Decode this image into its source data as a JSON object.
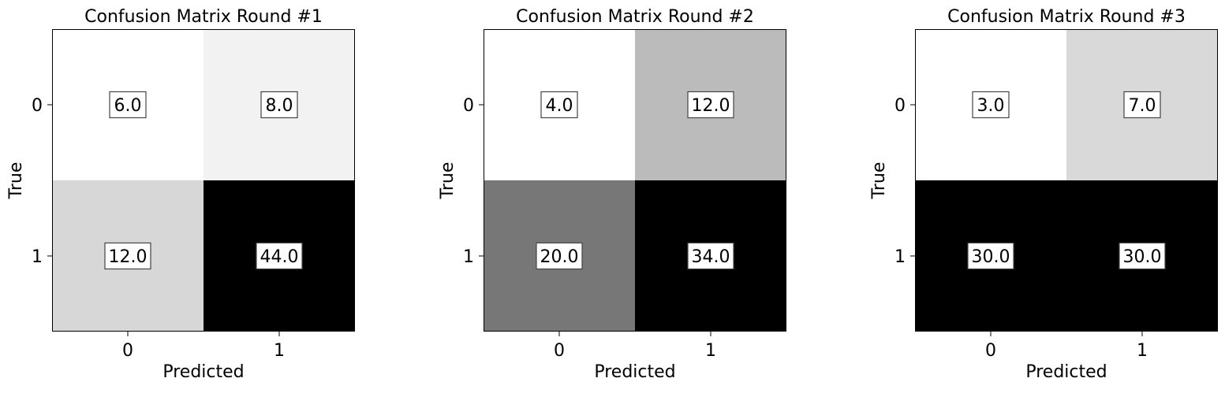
{
  "chart_data": [
    {
      "type": "heatmap",
      "title": "Confusion Matrix Round #1",
      "xlabel": "Predicted",
      "ylabel": "True",
      "x_categories": [
        "0",
        "1"
      ],
      "y_categories": [
        "0",
        "1"
      ],
      "values": [
        [
          6.0,
          8.0
        ],
        [
          12.0,
          44.0
        ]
      ],
      "value_labels": [
        [
          "6.0",
          "8.0"
        ],
        [
          "12.0",
          "44.0"
        ]
      ],
      "colormap": "grayscale, low = white, high = black"
    },
    {
      "type": "heatmap",
      "title": "Confusion Matrix Round #2",
      "xlabel": "Predicted",
      "ylabel": "True",
      "x_categories": [
        "0",
        "1"
      ],
      "y_categories": [
        "0",
        "1"
      ],
      "values": [
        [
          4.0,
          12.0
        ],
        [
          20.0,
          34.0
        ]
      ],
      "value_labels": [
        [
          "4.0",
          "12.0"
        ],
        [
          "20.0",
          "34.0"
        ]
      ],
      "colormap": "grayscale, low = white, high = black"
    },
    {
      "type": "heatmap",
      "title": "Confusion Matrix Round #3",
      "xlabel": "Predicted",
      "ylabel": "True",
      "x_categories": [
        "0",
        "1"
      ],
      "y_categories": [
        "0",
        "1"
      ],
      "values": [
        [
          3.0,
          7.0
        ],
        [
          30.0,
          30.0
        ]
      ],
      "value_labels": [
        [
          "3.0",
          "7.0"
        ],
        [
          "30.0",
          "30.0"
        ]
      ],
      "colormap": "grayscale, low = white, high = black"
    }
  ]
}
